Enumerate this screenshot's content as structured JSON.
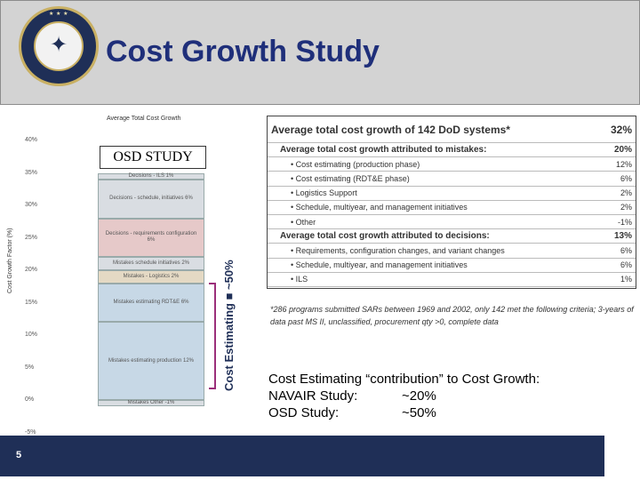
{
  "header": {
    "title": "Cost Growth Study"
  },
  "chart": {
    "title": "Average Total Cost Growth",
    "ylabel": "Cost Growth Factor (%)",
    "osd_label": "OSD STUDY",
    "side_label": "Cost Estimating",
    "side_value": "■ ~50%"
  },
  "chart_data": {
    "type": "bar",
    "title": "Average Total Cost Growth",
    "ylabel": "Cost Growth Factor (%)",
    "ylim": [
      0,
      40
    ],
    "yticks": [
      "40%",
      "35%",
      "30%",
      "25%",
      "20%",
      "15%",
      "10%",
      "5%",
      "0%",
      "-5%"
    ],
    "segments": [
      {
        "name": "Mistakes - Other",
        "label": "Mistakes Other -1%",
        "value": -1
      },
      {
        "name": "Mistakes - Cost estimating (production)",
        "label": "Mistakes estimating production 12%",
        "value": 12
      },
      {
        "name": "Mistakes - Cost estimating (RDT&E)",
        "label": "Mistakes estimating RDT&E 6%",
        "value": 6
      },
      {
        "name": "Mistakes - Logistics",
        "label": "Mistakes - Logistics 2%",
        "value": 2
      },
      {
        "name": "Mistakes - Schedule",
        "label": "Mistakes schedule initiatives 2%",
        "value": 2
      },
      {
        "name": "Decisions - Requirements",
        "label": "Decisions - requirements configuration 6%",
        "value": 6
      },
      {
        "name": "Decisions - Schedule",
        "label": "Decisions - schedule, initiatives 6%",
        "value": 6
      },
      {
        "name": "Decisions - ILS",
        "label": "Decisions - ILS 1%",
        "value": 1
      }
    ]
  },
  "table": {
    "header": {
      "label": "Average total cost growth of 142 DoD systems*",
      "value": "32%"
    },
    "rows": [
      {
        "label": "Average total cost growth attributed to mistakes:",
        "value": "20%",
        "kind": "sub"
      },
      {
        "label": "• Cost estimating (production phase)",
        "value": "12%",
        "kind": "item"
      },
      {
        "label": "• Cost estimating (RDT&E phase)",
        "value": "6%",
        "kind": "item"
      },
      {
        "label": "• Logistics Support",
        "value": "2%",
        "kind": "item"
      },
      {
        "label": "• Schedule, multiyear, and management initiatives",
        "value": "2%",
        "kind": "item"
      },
      {
        "label": "• Other",
        "value": "-1%",
        "kind": "item"
      },
      {
        "label": "Average total cost growth attributed to decisions:",
        "value": "13%",
        "kind": "sub"
      },
      {
        "label": "• Requirements, configuration changes, and variant changes",
        "value": "6%",
        "kind": "item"
      },
      {
        "label": "• Schedule, multiyear, and management initiatives",
        "value": "6%",
        "kind": "item"
      },
      {
        "label": "• ILS",
        "value": "1%",
        "kind": "item"
      }
    ],
    "footnote": "*286 programs submitted SARs between 1969 and 2002, only 142 met the following criteria; 3-years of data past MS II, unclassified, procurement qty >0, complete data"
  },
  "callout": {
    "line1": "Cost Estimating “contribution” to Cost Growth:",
    "line2_k": "NAVAIR Study:",
    "line2_v": "~20%",
    "line3_k": "OSD Study:",
    "line3_v": "~50%"
  },
  "footer": {
    "page": "5"
  }
}
